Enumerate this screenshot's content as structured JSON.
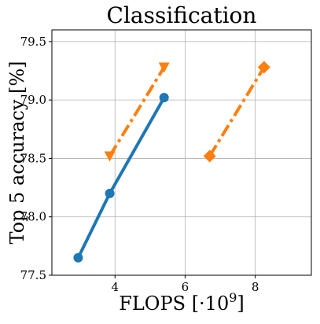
{
  "chart_data": {
    "type": "line",
    "title": "Classification",
    "xlabel": "FLOPS [·10",
    "xlabel_superscript": "9",
    "xlabel_suffix": "]",
    "ylabel": "Top 5 accuracy [%]",
    "xlim": [
      2.2,
      9.6
    ],
    "ylim": [
      77.5,
      79.6
    ],
    "xticks": [
      4,
      6,
      8
    ],
    "xtick_labels": [
      "4",
      "6",
      "8"
    ],
    "yticks": [
      77.5,
      78.0,
      78.5,
      79.0,
      79.5
    ],
    "ytick_labels": [
      "77.5",
      "78.0",
      "78.5",
      "79.0",
      "79.5"
    ],
    "grid": true,
    "legend": "none",
    "series": [
      {
        "color": "#1f77b4",
        "linestyle": "solid",
        "marker": "circle",
        "x": [
          2.95,
          3.85,
          5.4
        ],
        "y": [
          77.65,
          78.2,
          79.02
        ]
      },
      {
        "color": "#ff7f0e",
        "linestyle": "dashdot",
        "marker": "triangle-down",
        "x": [
          3.85,
          5.4
        ],
        "y": [
          78.52,
          79.28
        ]
      },
      {
        "color": "#ff7f0e",
        "linestyle": "dashdot",
        "marker": "diamond",
        "x": [
          6.7,
          8.25
        ],
        "y": [
          78.52,
          79.28
        ]
      }
    ]
  }
}
